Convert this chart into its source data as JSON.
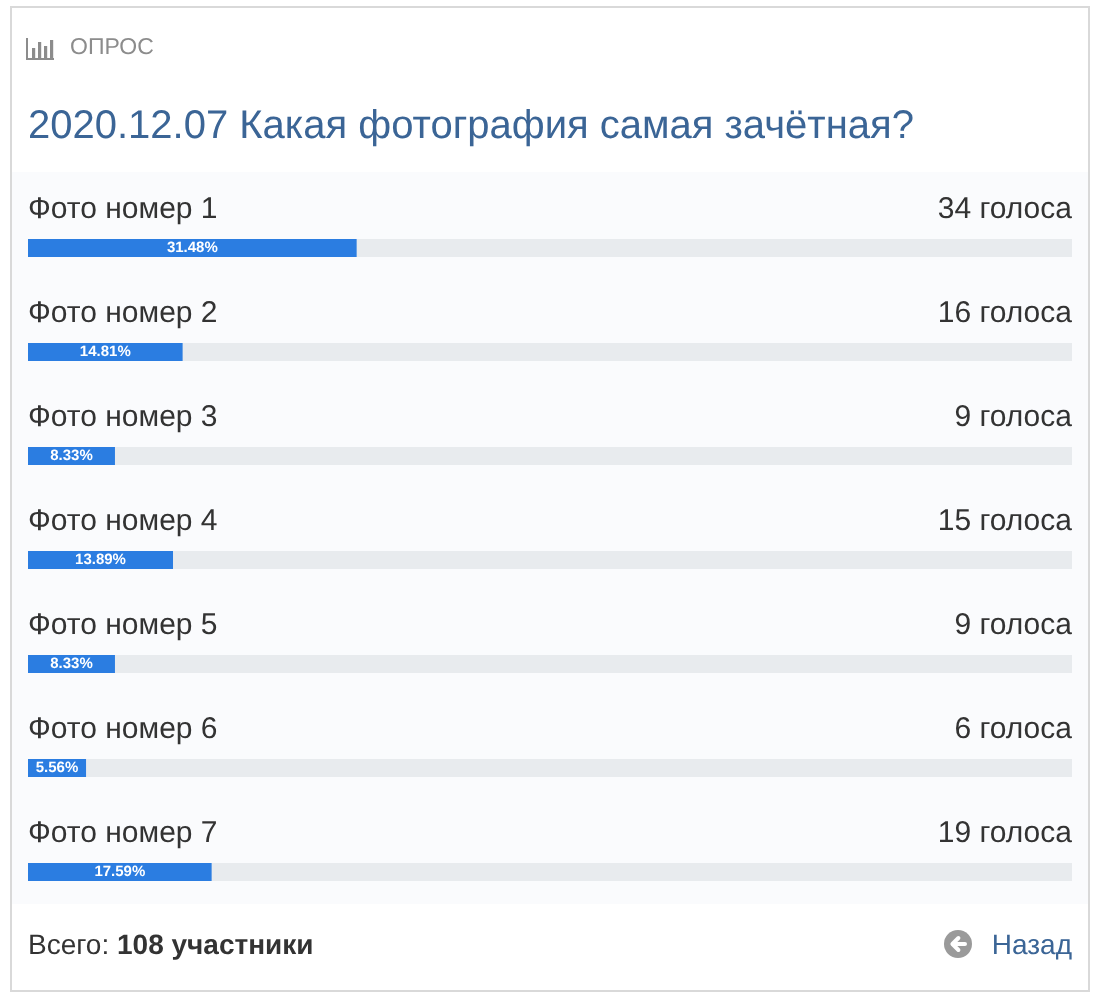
{
  "chart_data": {
    "type": "bar",
    "orientation": "horizontal",
    "title": "2020.12.07 Какая фотография самая зачётная?",
    "categories": [
      "Фото номер 1",
      "Фото номер 2",
      "Фото номер 3",
      "Фото номер 4",
      "Фото номер 5",
      "Фото номер 6",
      "Фото номер 7"
    ],
    "values": [
      31.48,
      14.81,
      8.33,
      13.89,
      8.33,
      5.56,
      17.59
    ],
    "value_labels": [
      "31.48%",
      "14.81%",
      "8.33%",
      "13.89%",
      "8.33%",
      "5.56%",
      "17.59%"
    ],
    "color": "#2b7de1",
    "xlim": [
      0,
      100
    ],
    "tick_labels": "y",
    "annotations": [
      "ОПРОС",
      "34 голоса",
      "16 голоса",
      "9 голоса",
      "15 голоса",
      "9 голоса",
      "6 голоса",
      "19 голоса",
      "Всего: 108 участники",
      "Назад"
    ]
  }
}
